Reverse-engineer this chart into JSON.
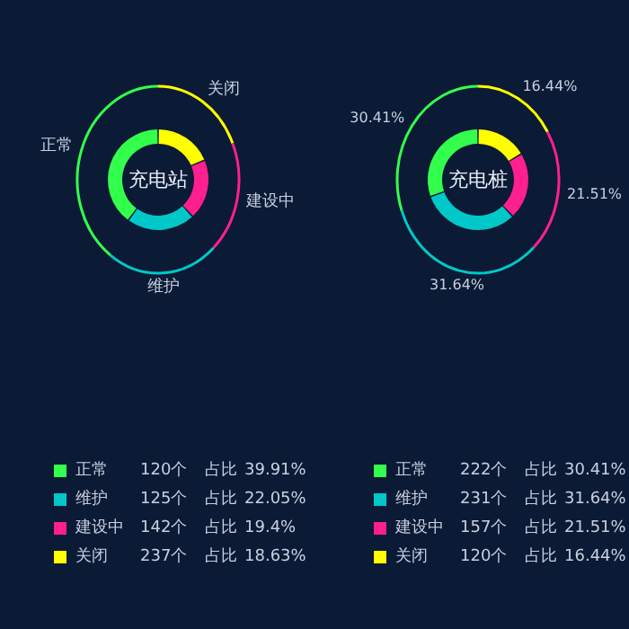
{
  "chart_data": [
    {
      "type": "donut",
      "title": "充电站",
      "categories": [
        "正常",
        "维护",
        "建设中",
        "关闭"
      ],
      "values": [
        39.91,
        22.05,
        19.4,
        18.63
      ],
      "value_labels": [
        "39.91%",
        "22.05%",
        "19.4%",
        "18.63%"
      ],
      "colors": [
        "#33ff4d",
        "#00c8c8",
        "#ff1f8f",
        "#ffff00"
      ],
      "legend": "bottom",
      "annotations": [
        "120个",
        "125个",
        "142个",
        "237个",
        "占比"
      ]
    },
    {
      "type": "donut",
      "title": "充电桩",
      "categories": [
        "正常",
        "维护",
        "建设中",
        "关闭"
      ],
      "values": [
        30.41,
        31.64,
        21.51,
        16.44
      ],
      "value_labels": [
        "30.41%",
        "31.64%",
        "21.51%",
        "16.44%"
      ],
      "colors": [
        "#33ff4d",
        "#00c8c8",
        "#ff1f8f",
        "#ffff00"
      ],
      "legend": "bottom",
      "data_labels": true,
      "annotations": [
        "222个",
        "231个",
        "157个",
        "120个",
        "占比"
      ]
    }
  ]
}
